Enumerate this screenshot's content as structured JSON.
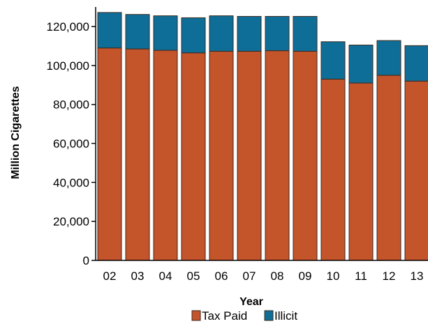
{
  "chart_data": {
    "type": "bar",
    "stacked": true,
    "title": "",
    "xlabel": "Year",
    "ylabel": "Million Cigarettes",
    "categories": [
      "02",
      "03",
      "04",
      "05",
      "06",
      "07",
      "08",
      "09",
      "10",
      "11",
      "12",
      "13"
    ],
    "series": [
      {
        "name": "Tax Paid",
        "color": "#c4542a",
        "values": [
          109000,
          108500,
          107800,
          106500,
          107300,
          107300,
          107600,
          107300,
          93000,
          91000,
          95000,
          92000
        ]
      },
      {
        "name": "Illicit",
        "color": "#0f6e98",
        "values": [
          18200,
          17700,
          17700,
          18000,
          18200,
          17900,
          17600,
          17900,
          19200,
          19500,
          17800,
          18200
        ]
      }
    ],
    "yticks": [
      "0",
      "20,000",
      "40,000",
      "60,000",
      "80,000",
      "100,000",
      "120,000"
    ],
    "ylim": [
      0,
      130000
    ],
    "grid": false,
    "legend": "bottom-center"
  }
}
